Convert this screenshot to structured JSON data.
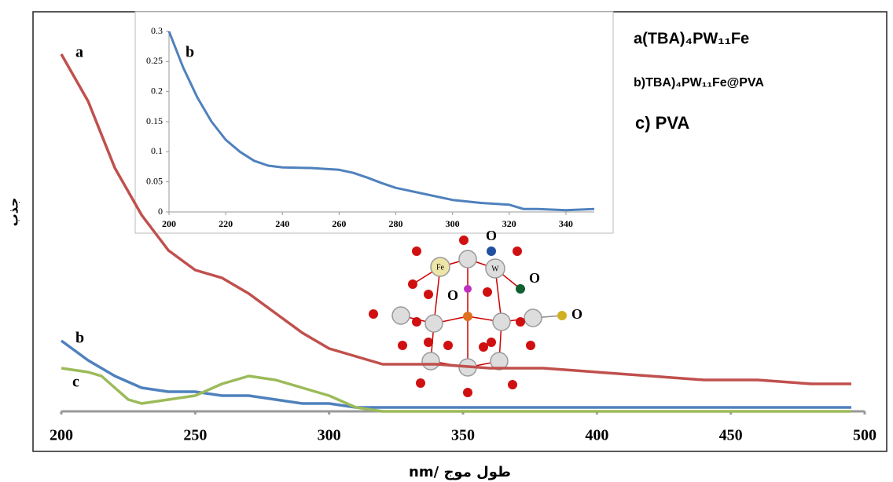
{
  "chart_data": [
    {
      "type": "line",
      "xlabel": "nm/ طول موج",
      "ylabel": "جذب",
      "xlim": [
        200,
        500
      ],
      "ylim": [
        0,
        1
      ],
      "xticks": [
        200,
        250,
        300,
        350,
        400,
        450,
        500
      ],
      "legend_texts": [
        "a(TBA)₄PW₁₁Fe",
        "b)TBA)₄PW₁₁Fe@PVA",
        "c) PVA"
      ],
      "annotations": [
        "O",
        "Fe",
        "W",
        "O",
        "O",
        "O"
      ],
      "series": [
        {
          "name": "a",
          "color": "#c0504d",
          "x": [
            200,
            210,
            220,
            230,
            240,
            250,
            260,
            270,
            280,
            290,
            300,
            310,
            320,
            340,
            360,
            380,
            400,
            420,
            440,
            460,
            480,
            495
          ],
          "values": [
            0.91,
            0.79,
            0.62,
            0.5,
            0.41,
            0.36,
            0.34,
            0.3,
            0.25,
            0.2,
            0.16,
            0.14,
            0.12,
            0.12,
            0.11,
            0.11,
            0.1,
            0.09,
            0.08,
            0.08,
            0.07,
            0.07
          ]
        },
        {
          "name": "b",
          "color": "#4f81bd",
          "x": [
            200,
            210,
            220,
            230,
            240,
            250,
            260,
            270,
            280,
            290,
            300,
            310,
            330,
            360,
            400,
            450,
            495
          ],
          "values": [
            0.18,
            0.13,
            0.09,
            0.06,
            0.05,
            0.05,
            0.04,
            0.04,
            0.03,
            0.02,
            0.02,
            0.01,
            0.01,
            0.01,
            0.01,
            0.01,
            0.01
          ]
        },
        {
          "name": "c",
          "color": "#9bbb59",
          "x": [
            200,
            210,
            215,
            220,
            225,
            230,
            240,
            250,
            260,
            270,
            280,
            290,
            300,
            310,
            320,
            360,
            400,
            450,
            495
          ],
          "values": [
            0.11,
            0.1,
            0.09,
            0.06,
            0.03,
            0.02,
            0.03,
            0.04,
            0.07,
            0.09,
            0.08,
            0.06,
            0.04,
            0.01,
            0,
            0,
            0,
            0,
            0
          ]
        }
      ]
    },
    {
      "type": "line",
      "xlim": [
        200,
        350
      ],
      "ylim": [
        0,
        0.3
      ],
      "xticks": [
        200,
        220,
        240,
        260,
        280,
        300,
        320,
        340
      ],
      "yticks": [
        0,
        0.05,
        0.1,
        0.15,
        0.2,
        0.25,
        0.3
      ],
      "series": [
        {
          "name": "b",
          "color": "#4f81bd",
          "x": [
            200,
            205,
            210,
            215,
            220,
            225,
            230,
            235,
            240,
            250,
            260,
            265,
            270,
            275,
            280,
            290,
            300,
            310,
            320,
            325,
            330,
            340,
            350
          ],
          "values": [
            0.3,
            0.24,
            0.19,
            0.15,
            0.12,
            0.1,
            0.085,
            0.077,
            0.074,
            0.073,
            0.07,
            0.065,
            0.057,
            0.048,
            0.04,
            0.03,
            0.02,
            0.015,
            0.012,
            0.005,
            0.005,
            0.003,
            0.005
          ]
        }
      ]
    }
  ]
}
